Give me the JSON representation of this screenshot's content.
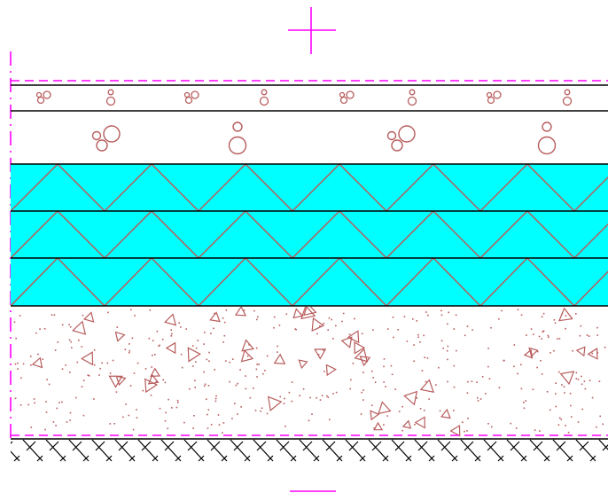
{
  "drawing": {
    "type": "construction layer section detail",
    "annotations": [],
    "colors": {
      "background": "#ffffff",
      "construction_lines": "#ff00ff",
      "layer_lines": "#000000",
      "hatch_pattern": "#b85c5c",
      "insulation_fill": "#00ffff"
    },
    "layers": [
      {
        "name": "top-finish-layer",
        "pattern": "small-aggregate-circles"
      },
      {
        "name": "gravel-layer",
        "pattern": "large-aggregate-circles"
      },
      {
        "name": "insulation-layer-1",
        "pattern": "zigzag",
        "fill": "cyan"
      },
      {
        "name": "insulation-layer-2",
        "pattern": "zigzag",
        "fill": "cyan"
      },
      {
        "name": "insulation-layer-3",
        "pattern": "zigzag",
        "fill": "cyan"
      },
      {
        "name": "concrete-layer",
        "pattern": "concrete-triangles-dots"
      },
      {
        "name": "ground-layer",
        "pattern": "earth-hatch"
      }
    ]
  }
}
